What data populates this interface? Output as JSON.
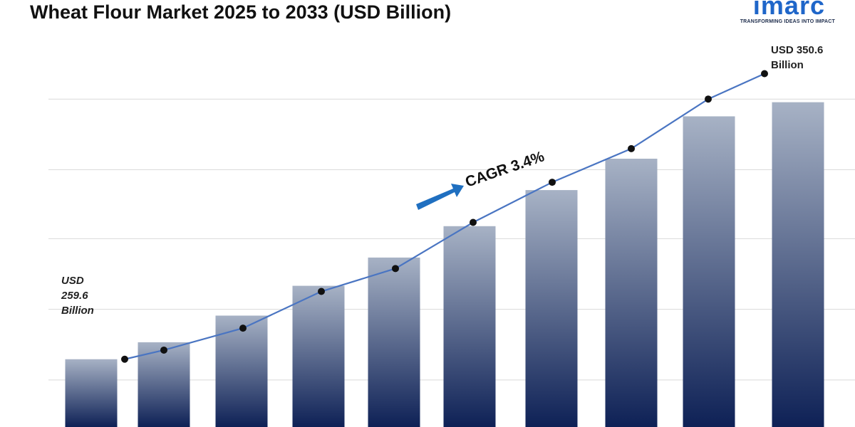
{
  "header": {
    "title": "Wheat Flour Market 2025 to 2033 (USD Billion)"
  },
  "logo": {
    "wordmark": "imarc",
    "tagline": "TRANSFORMING IDEAS INTO IMPACT"
  },
  "chart_data": {
    "type": "bar",
    "title": "Wheat Flour Market 2025 to 2033 (USD Billion)",
    "xlabel": "",
    "ylabel": "",
    "x_ticks_visible": false,
    "y_ticks_visible": false,
    "grid": true,
    "bar_values": [
      259.6,
      265.0,
      273.5,
      283.0,
      292.0,
      302.0,
      313.5,
      323.5,
      337.0,
      341.5
    ],
    "line_values": [
      259.6,
      262.5,
      269.5,
      281.2,
      288.5,
      303.2,
      316.0,
      326.7,
      342.5,
      350.6
    ],
    "ylim": [
      238,
      365
    ],
    "gridlines": [
      253,
      275.5,
      298,
      320,
      342.5
    ],
    "colors": {
      "bar_top": "#A7B2C5",
      "bar_bottom": "#0E2156",
      "line": "#4A75C2",
      "marker": "#111111",
      "grid": "#D9D9D9",
      "arrow": "#1F6FC0"
    },
    "annotations": {
      "start_label": [
        "USD",
        "259.6",
        "Billion"
      ],
      "end_label": [
        "USD 350.6",
        "Billion"
      ],
      "cagr": "CAGR 3.4%"
    }
  }
}
